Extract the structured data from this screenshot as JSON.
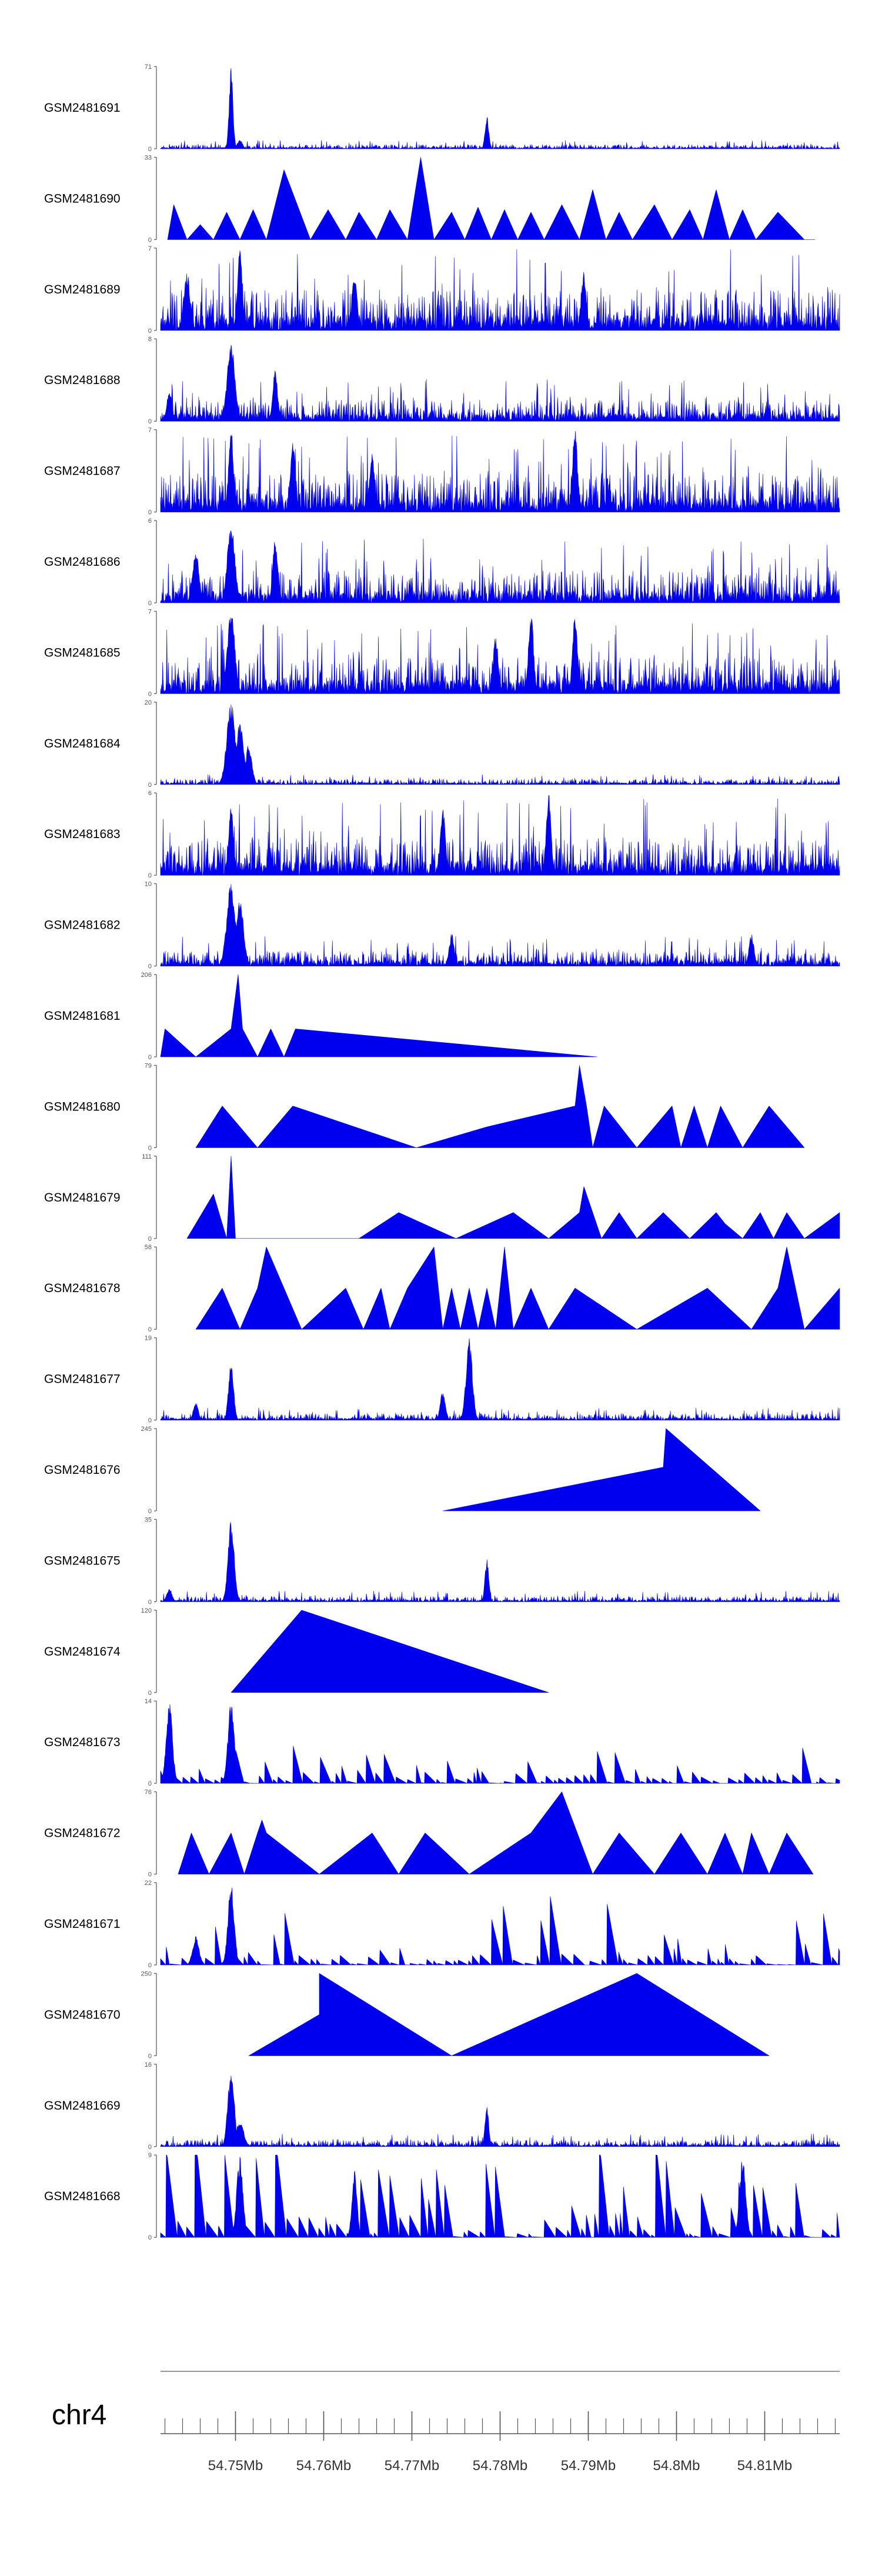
{
  "chart_data": {
    "type": "area",
    "title": "",
    "xlabel": "",
    "xlim": [
      54.7415,
      54.8185
    ],
    "colors": {
      "fill": "#0000ee",
      "axis": "#555555",
      "text": "#000000"
    },
    "chromosome": "chr4",
    "x_ticks": [
      "54.75Mb",
      "54.76Mb",
      "54.77Mb",
      "54.78Mb",
      "54.79Mb",
      "54.8Mb",
      "54.81Mb"
    ],
    "x_tick_values": [
      54.75,
      54.76,
      54.77,
      54.78,
      54.79,
      54.8,
      54.81
    ],
    "tracks": [
      {
        "name": "GSM2481691",
        "ymax": "71",
        "ymin": "0",
        "max": 71,
        "style": "noise",
        "base": 0.04,
        "seed": 11,
        "peaks": [
          [
            54.7495,
            71,
            0.0003
          ],
          [
            54.7785,
            28,
            0.0003
          ],
          [
            54.7505,
            8,
            0.0004
          ]
        ]
      },
      {
        "name": "GSM2481690",
        "ymax": "33",
        "ymin": "0",
        "max": 33,
        "style": "tri",
        "points": [
          [
            54.7423,
            0
          ],
          [
            54.743,
            14
          ],
          [
            54.7445,
            0
          ],
          [
            54.746,
            6
          ],
          [
            54.7475,
            0
          ],
          [
            54.749,
            11
          ],
          [
            54.7505,
            0
          ],
          [
            54.752,
            12
          ],
          [
            54.7535,
            0
          ],
          [
            54.7555,
            28
          ],
          [
            54.7585,
            0
          ],
          [
            54.7605,
            12
          ],
          [
            54.7625,
            0
          ],
          [
            54.764,
            11
          ],
          [
            54.766,
            0
          ],
          [
            54.7675,
            12
          ],
          [
            54.7695,
            0
          ],
          [
            54.771,
            33
          ],
          [
            54.7725,
            0
          ],
          [
            54.7745,
            11
          ],
          [
            54.776,
            0
          ],
          [
            54.7775,
            13
          ],
          [
            54.779,
            0
          ],
          [
            54.7805,
            12
          ],
          [
            54.782,
            0
          ],
          [
            54.7835,
            11
          ],
          [
            54.785,
            0
          ],
          [
            54.787,
            14
          ],
          [
            54.789,
            0
          ],
          [
            54.7905,
            20
          ],
          [
            54.792,
            0
          ],
          [
            54.7935,
            11
          ],
          [
            54.795,
            0
          ],
          [
            54.7975,
            14
          ],
          [
            54.7995,
            0
          ],
          [
            54.8015,
            12
          ],
          [
            54.803,
            0
          ],
          [
            54.8045,
            20
          ],
          [
            54.806,
            0
          ],
          [
            54.8075,
            12
          ],
          [
            54.809,
            0
          ],
          [
            54.8115,
            11
          ],
          [
            54.8145,
            0
          ],
          [
            54.8157,
            0
          ]
        ]
      },
      {
        "name": "GSM2481689",
        "ymax": "7",
        "ymin": "0",
        "max": 7,
        "style": "noise",
        "base": 0.38,
        "seed": 23,
        "peaks": [
          [
            54.7505,
            7,
            0.0004
          ],
          [
            54.7445,
            5,
            0.0005
          ],
          [
            54.7635,
            5,
            0.0004
          ],
          [
            54.7895,
            5,
            0.0004
          ]
        ]
      },
      {
        "name": "GSM2481688",
        "ymax": "8",
        "ymin": "0",
        "max": 8,
        "style": "noise",
        "base": 0.2,
        "seed": 37,
        "peaks": [
          [
            54.7495,
            8,
            0.0006
          ],
          [
            54.7545,
            5,
            0.0004
          ],
          [
            54.7425,
            3,
            0.0004
          ]
        ]
      },
      {
        "name": "GSM2481687",
        "ymax": "7",
        "ymin": "0",
        "max": 7,
        "style": "noise",
        "base": 0.36,
        "seed": 41,
        "peaks": [
          [
            54.7495,
            7,
            0.0004
          ],
          [
            54.7565,
            6,
            0.0004
          ],
          [
            54.7885,
            7,
            0.0004
          ],
          [
            54.7655,
            5,
            0.0004
          ]
        ]
      },
      {
        "name": "GSM2481686",
        "ymax": "6",
        "ymin": "0",
        "max": 6,
        "style": "noise",
        "base": 0.3,
        "seed": 53,
        "peaks": [
          [
            54.7495,
            6,
            0.0006
          ],
          [
            54.7545,
            5,
            0.0004
          ],
          [
            54.7455,
            4,
            0.0005
          ]
        ]
      },
      {
        "name": "GSM2481685",
        "ymax": "7",
        "ymin": "0",
        "max": 7,
        "style": "noise",
        "base": 0.34,
        "seed": 67,
        "peaks": [
          [
            54.7495,
            7,
            0.0006
          ],
          [
            54.7835,
            7,
            0.0004
          ],
          [
            54.7885,
            7,
            0.0004
          ],
          [
            54.7795,
            5,
            0.0004
          ]
        ]
      },
      {
        "name": "GSM2481684",
        "ymax": "20",
        "ymin": "0",
        "max": 20,
        "style": "noise",
        "base": 0.05,
        "seed": 71,
        "peaks": [
          [
            54.7495,
            20,
            0.0007
          ],
          [
            54.7505,
            16,
            0.0006
          ],
          [
            54.7515,
            10,
            0.0005
          ]
        ]
      },
      {
        "name": "GSM2481683",
        "ymax": "6",
        "ymin": "0",
        "max": 6,
        "style": "noise",
        "base": 0.36,
        "seed": 83,
        "peaks": [
          [
            54.7855,
            6,
            0.0004
          ],
          [
            54.7495,
            5,
            0.0004
          ],
          [
            54.7735,
            5,
            0.0004
          ]
        ]
      },
      {
        "name": "GSM2481682",
        "ymax": "10",
        "ymin": "0",
        "max": 10,
        "style": "noise",
        "base": 0.14,
        "seed": 97,
        "peaks": [
          [
            54.7495,
            10,
            0.0007
          ],
          [
            54.7505,
            8,
            0.0006
          ],
          [
            54.7745,
            4,
            0.0004
          ],
          [
            54.8085,
            4,
            0.0004
          ]
        ]
      },
      {
        "name": "GSM2481681",
        "ymax": "206",
        "ymin": "0",
        "max": 206,
        "style": "tri",
        "points": [
          [
            54.7415,
            0
          ],
          [
            54.742,
            70
          ],
          [
            54.7455,
            0
          ],
          [
            54.7495,
            70
          ],
          [
            54.7503,
            206
          ],
          [
            54.7508,
            70
          ],
          [
            54.7525,
            0
          ],
          [
            54.754,
            70
          ],
          [
            54.7555,
            0
          ],
          [
            54.7568,
            70
          ],
          [
            54.791,
            0
          ]
        ]
      },
      {
        "name": "GSM2481680",
        "ymax": "79",
        "ymin": "0",
        "max": 79,
        "style": "tri",
        "points": [
          [
            54.7455,
            0
          ],
          [
            54.7485,
            40
          ],
          [
            54.7525,
            0
          ],
          [
            54.7565,
            40
          ],
          [
            54.7705,
            0
          ],
          [
            54.7785,
            20
          ],
          [
            54.7885,
            40
          ],
          [
            54.789,
            79
          ],
          [
            54.7898,
            40
          ],
          [
            54.7905,
            0
          ],
          [
            54.7918,
            40
          ],
          [
            54.7955,
            0
          ],
          [
            54.7995,
            40
          ],
          [
            54.8005,
            0
          ],
          [
            54.802,
            40
          ],
          [
            54.8035,
            0
          ],
          [
            54.805,
            40
          ],
          [
            54.8075,
            0
          ],
          [
            54.8105,
            40
          ],
          [
            54.8145,
            0
          ]
        ]
      },
      {
        "name": "GSM2481679",
        "ymax": "111",
        "ymin": "0",
        "max": 111,
        "style": "tri",
        "points": [
          [
            54.7445,
            0
          ],
          [
            54.7475,
            60
          ],
          [
            54.749,
            0
          ],
          [
            54.7495,
            111
          ],
          [
            54.75,
            0
          ],
          [
            54.7555,
            0
          ],
          [
            54.7595,
            0
          ],
          [
            54.764,
            0
          ],
          [
            54.7685,
            35
          ],
          [
            54.775,
            0
          ],
          [
            54.7815,
            35
          ],
          [
            54.7855,
            0
          ],
          [
            54.789,
            35
          ],
          [
            54.7895,
            70
          ],
          [
            54.7915,
            0
          ],
          [
            54.7935,
            35
          ],
          [
            54.7955,
            0
          ],
          [
            54.7985,
            35
          ],
          [
            54.8015,
            0
          ],
          [
            54.8045,
            35
          ],
          [
            54.8055,
            20
          ],
          [
            54.8075,
            0
          ],
          [
            54.8095,
            35
          ],
          [
            54.811,
            0
          ],
          [
            54.8125,
            35
          ],
          [
            54.8145,
            0
          ],
          [
            54.8185,
            35
          ],
          [
            54.8185,
            0
          ]
        ]
      },
      {
        "name": "GSM2481678",
        "ymax": "58",
        "ymin": "0",
        "max": 58,
        "style": "tri",
        "points": [
          [
            54.7455,
            0
          ],
          [
            54.7485,
            29
          ],
          [
            54.7505,
            0
          ],
          [
            54.7525,
            29
          ],
          [
            54.7535,
            58
          ],
          [
            54.7575,
            0
          ],
          [
            54.7625,
            29
          ],
          [
            54.7645,
            0
          ],
          [
            54.7665,
            29
          ],
          [
            54.7675,
            0
          ],
          [
            54.7695,
            29
          ],
          [
            54.7725,
            58
          ],
          [
            54.7735,
            0
          ],
          [
            54.7745,
            29
          ],
          [
            54.7755,
            0
          ],
          [
            54.7765,
            29
          ],
          [
            54.7775,
            0
          ],
          [
            54.7785,
            29
          ],
          [
            54.7795,
            0
          ],
          [
            54.7805,
            58
          ],
          [
            54.7815,
            0
          ],
          [
            54.7835,
            29
          ],
          [
            54.7855,
            0
          ],
          [
            54.7885,
            29
          ],
          [
            54.7955,
            0
          ],
          [
            54.8035,
            29
          ],
          [
            54.8085,
            0
          ],
          [
            54.8115,
            29
          ],
          [
            54.8125,
            58
          ],
          [
            54.8145,
            0
          ],
          [
            54.8185,
            29
          ],
          [
            54.8185,
            0
          ]
        ]
      },
      {
        "name": "GSM2481677",
        "ymax": "19",
        "ymin": "0",
        "max": 19,
        "style": "noise",
        "base": 0.06,
        "seed": 109,
        "peaks": [
          [
            54.7495,
            14,
            0.0004
          ],
          [
            54.7735,
            7,
            0.0004
          ],
          [
            54.7765,
            19,
            0.0005
          ],
          [
            54.7455,
            4,
            0.0004
          ]
        ]
      },
      {
        "name": "GSM2481676",
        "ymax": "245",
        "ymin": "0",
        "max": 245,
        "style": "tri",
        "points": [
          [
            54.7735,
            0
          ],
          [
            54.7985,
            130
          ],
          [
            54.7988,
            245
          ],
          [
            54.8095,
            0
          ]
        ]
      },
      {
        "name": "GSM2481675",
        "ymax": "35",
        "ymin": "0",
        "max": 35,
        "style": "noise",
        "base": 0.05,
        "seed": 127,
        "peaks": [
          [
            54.7495,
            35,
            0.0005
          ],
          [
            54.7785,
            18,
            0.0003
          ],
          [
            54.7425,
            6,
            0.0004
          ]
        ]
      },
      {
        "name": "GSM2481674",
        "ymax": "120",
        "ymin": "0",
        "max": 120,
        "style": "tri",
        "points": [
          [
            54.7495,
            0
          ],
          [
            54.7575,
            120
          ],
          [
            54.7855,
            0
          ]
        ]
      },
      {
        "name": "GSM2481673",
        "ymax": "14",
        "ymin": "0",
        "max": 14,
        "style": "tri-noise",
        "base": 0.16,
        "seed": 131,
        "peaks": [
          [
            54.7425,
            14,
            0.0005
          ],
          [
            54.7495,
            14,
            0.0005
          ]
        ]
      },
      {
        "name": "GSM2481672",
        "ymax": "76",
        "ymin": "0",
        "max": 76,
        "style": "tri",
        "points": [
          [
            54.7435,
            0
          ],
          [
            54.745,
            38
          ],
          [
            54.747,
            0
          ],
          [
            54.7495,
            38
          ],
          [
            54.751,
            0
          ],
          [
            54.7525,
            38
          ],
          [
            54.753,
            50
          ],
          [
            54.7535,
            38
          ],
          [
            54.7595,
            0
          ],
          [
            54.7655,
            38
          ],
          [
            54.7685,
            0
          ],
          [
            54.7715,
            38
          ],
          [
            54.7765,
            0
          ],
          [
            54.7835,
            38
          ],
          [
            54.787,
            76
          ],
          [
            54.7905,
            0
          ],
          [
            54.7935,
            38
          ],
          [
            54.7975,
            0
          ],
          [
            54.8005,
            38
          ],
          [
            54.8035,
            0
          ],
          [
            54.8055,
            38
          ],
          [
            54.8075,
            0
          ],
          [
            54.8085,
            38
          ],
          [
            54.8105,
            0
          ],
          [
            54.8125,
            38
          ],
          [
            54.8155,
            0
          ]
        ]
      },
      {
        "name": "GSM2481671",
        "ymax": "22",
        "ymin": "0",
        "max": 22,
        "style": "tri-noise",
        "base": 0.22,
        "seed": 149,
        "peaks": [
          [
            54.7495,
            22,
            0.0005
          ],
          [
            54.7455,
            8,
            0.0005
          ]
        ]
      },
      {
        "name": "GSM2481670",
        "ymax": "250",
        "ymin": "0",
        "max": 250,
        "style": "tri",
        "points": [
          [
            54.7515,
            0
          ],
          [
            54.7595,
            125
          ],
          [
            54.7595,
            250
          ],
          [
            54.7745,
            0
          ],
          [
            54.7955,
            250
          ],
          [
            54.8105,
            0
          ]
        ]
      },
      {
        "name": "GSM2481669",
        "ymax": "16",
        "ymin": "0",
        "max": 16,
        "style": "noise",
        "base": 0.06,
        "seed": 163,
        "peaks": [
          [
            54.7495,
            16,
            0.0005
          ],
          [
            54.7785,
            8,
            0.0003
          ],
          [
            54.7505,
            5,
            0.0006
          ]
        ]
      },
      {
        "name": "GSM2481668",
        "ymax": "9",
        "ymin": "0",
        "max": 9,
        "style": "tri-noise",
        "base": 0.35,
        "seed": 179,
        "peaks": [
          [
            54.7505,
            9,
            0.0005
          ],
          [
            54.8075,
            9,
            0.0005
          ],
          [
            54.7635,
            8,
            0.0004
          ]
        ]
      }
    ]
  }
}
